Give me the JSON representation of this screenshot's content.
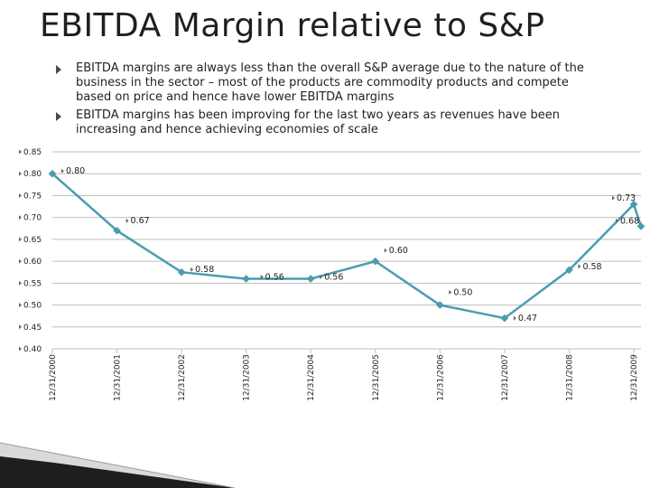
{
  "slide": {
    "title": "EBITDA Margin relative to S&P",
    "bullets": [
      "EBITDA margins are always less than the overall S&P average due to the nature of the business in the sector – most of the products are commodity products and compete based on price and hence have lower EBITDA margins",
      "EBITDA margins has been improving for the last two years as revenues have been increasing and hence achieving economies of scale"
    ]
  },
  "chart_data": {
    "type": "line",
    "x": [
      "12/31/2000",
      "12/31/2001",
      "12/31/2002",
      "12/31/2003",
      "12/31/2004",
      "12/31/2005",
      "12/31/2006",
      "12/31/2007",
      "12/31/2008",
      "12/31/2009"
    ],
    "y_values": [
      0.8,
      0.67,
      0.575,
      0.56,
      0.56,
      0.6,
      0.5,
      0.47,
      0.58,
      0.73
    ],
    "end_value": 0.68,
    "data_labels": [
      "0.80",
      "0.67",
      "0.58",
      "0.56",
      "0.56",
      "0.60",
      "0.50",
      "0.47",
      "0.58",
      "0.73"
    ],
    "end_label": "0.68",
    "ylim": [
      0.4,
      0.85
    ],
    "y_ticks": [
      "0.40",
      "0.45",
      "0.50",
      "0.55",
      "0.60",
      "0.65",
      "0.70",
      "0.75",
      "0.80",
      "0.85"
    ],
    "grid": true,
    "line_color": "#4a9db0",
    "grid_color": "#bfbfbf"
  }
}
